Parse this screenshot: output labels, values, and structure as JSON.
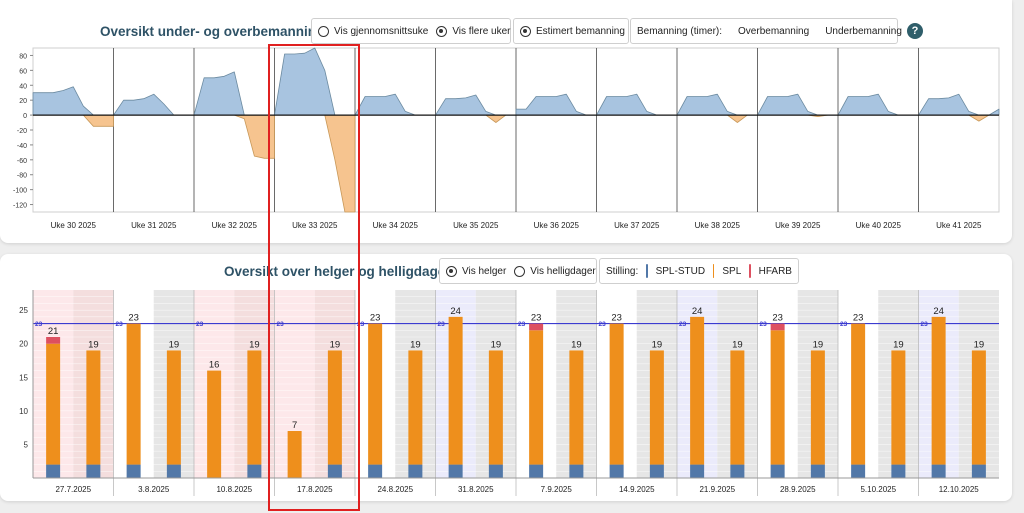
{
  "chart1": {
    "title": "Oversikt under- og overbemanning",
    "opt_avg": "Vis gjennomsnittsuke",
    "opt_multi": "Vis flere uker",
    "opt_est": "Estimert bemanning",
    "legend_label": "Bemanning (timer):",
    "legend_over": "Overbemanning",
    "legend_under": "Underbemanning",
    "help": "?",
    "colors": {
      "over": "#a8c4e0",
      "under": "#f6c48f",
      "over_stroke": "#6b8aa0",
      "under_stroke": "#c89858"
    }
  },
  "chart2": {
    "title": "Oversikt over helger og helligdager",
    "opt_helger": "Vis helger",
    "opt_hellig": "Vis helligdager",
    "legend_label": "Stilling:",
    "legend": [
      {
        "name": "SPL-STUD",
        "color": "#5278a8"
      },
      {
        "name": "SPL",
        "color": "#ee8f1c"
      },
      {
        "name": "HFARB",
        "color": "#dd5060"
      }
    ]
  },
  "chart_data": [
    {
      "type": "area",
      "title": "Oversikt under- og overbemanning",
      "ylim": [
        -130,
        90
      ],
      "yticks": [
        80,
        60,
        40,
        20,
        0,
        -20,
        -40,
        -60,
        -80,
        -100,
        -120
      ],
      "categories": [
        "Uke 30 2025",
        "Uke 31 2025",
        "Uke 32 2025",
        "Uke 33 2025",
        "Uke 34 2025",
        "Uke 35 2025",
        "Uke 36 2025",
        "Uke 37 2025",
        "Uke 38 2025",
        "Uke 39 2025",
        "Uke 40 2025",
        "Uke 41 2025"
      ],
      "series": [
        {
          "values": [
            [
              30,
              30,
              30,
              33,
              38,
              12,
              -15,
              -15,
              -15
            ],
            [
              0,
              20,
              20,
              22,
              28,
              15,
              0,
              0,
              0
            ],
            [
              0,
              50,
              50,
              52,
              58,
              -5,
              -55,
              -58,
              -58
            ],
            [
              0,
              82,
              82,
              83,
              90,
              60,
              -60,
              -130,
              -130
            ],
            [
              0,
              25,
              25,
              25,
              28,
              5,
              0,
              0,
              0
            ],
            [
              0,
              22,
              22,
              23,
              27,
              5,
              -10,
              0,
              0
            ],
            [
              8,
              8,
              25,
              25,
              25,
              28,
              5,
              0,
              0
            ],
            [
              0,
              25,
              25,
              25,
              28,
              5,
              0,
              0,
              0
            ],
            [
              0,
              25,
              25,
              25,
              28,
              5,
              -10,
              0,
              0
            ],
            [
              0,
              25,
              25,
              25,
              28,
              5,
              -2,
              0,
              0
            ],
            [
              0,
              25,
              25,
              25,
              28,
              5,
              0,
              0,
              0
            ],
            [
              0,
              22,
              22,
              23,
              28,
              5,
              -8,
              0,
              8
            ]
          ]
        }
      ]
    },
    {
      "type": "bar",
      "title": "Oversikt over helger og helligdager",
      "ylim": [
        0,
        28
      ],
      "yticks": [
        25,
        20,
        15,
        10,
        5
      ],
      "reference": 23,
      "reference_label": "23",
      "categories": [
        "27.7.2025",
        "3.8.2025",
        "10.8.2025",
        "17.8.2025",
        "24.8.2025",
        "31.8.2025",
        "7.9.2025",
        "14.9.2025",
        "21.9.2025",
        "28.9.2025",
        "5.10.2025",
        "12.10.2025"
      ],
      "weeks": [
        {
          "bg": "pink",
          "sat": {
            "stud": 2,
            "spl": 18,
            "hfarb": 1,
            "total": "21"
          },
          "sun": {
            "stud": 2,
            "spl": 17,
            "hfarb": 0,
            "total": "19"
          }
        },
        {
          "bg": "none",
          "sat": {
            "stud": 2,
            "spl": 21,
            "hfarb": 0,
            "total": "23"
          },
          "sun": {
            "stud": 2,
            "spl": 17,
            "hfarb": 0,
            "total": "19"
          }
        },
        {
          "bg": "pink",
          "sat": {
            "stud": 0,
            "spl": 16,
            "hfarb": 0,
            "total": "16"
          },
          "sun": {
            "stud": 2,
            "spl": 17,
            "hfarb": 0,
            "total": "19"
          }
        },
        {
          "bg": "pink",
          "sat": {
            "stud": 0,
            "spl": 7,
            "hfarb": 0,
            "total": "7"
          },
          "sun": {
            "stud": 2,
            "spl": 17,
            "hfarb": 0,
            "total": "19"
          }
        },
        {
          "bg": "none",
          "sat": {
            "stud": 2,
            "spl": 21,
            "hfarb": 0,
            "total": "23"
          },
          "sun": {
            "stud": 2,
            "spl": 17,
            "hfarb": 0,
            "total": "19"
          }
        },
        {
          "bg": "blue",
          "sat": {
            "stud": 2,
            "spl": 22,
            "hfarb": 0,
            "total": "24"
          },
          "sun": {
            "stud": 2,
            "spl": 17,
            "hfarb": 0,
            "total": "19"
          }
        },
        {
          "bg": "none",
          "sat": {
            "stud": 2,
            "spl": 20,
            "hfarb": 1,
            "total": "23"
          },
          "sun": {
            "stud": 2,
            "spl": 17,
            "hfarb": 0,
            "total": "19"
          }
        },
        {
          "bg": "none",
          "sat": {
            "stud": 2,
            "spl": 21,
            "hfarb": 0,
            "total": "23"
          },
          "sun": {
            "stud": 2,
            "spl": 17,
            "hfarb": 0,
            "total": "19"
          }
        },
        {
          "bg": "blue",
          "sat": {
            "stud": 2,
            "spl": 22,
            "hfarb": 0,
            "total": "24"
          },
          "sun": {
            "stud": 2,
            "spl": 17,
            "hfarb": 0,
            "total": "19"
          }
        },
        {
          "bg": "none",
          "sat": {
            "stud": 2,
            "spl": 20,
            "hfarb": 1,
            "total": "23"
          },
          "sun": {
            "stud": 2,
            "spl": 17,
            "hfarb": 0,
            "total": "19"
          }
        },
        {
          "bg": "none",
          "sat": {
            "stud": 2,
            "spl": 21,
            "hfarb": 0,
            "total": "23"
          },
          "sun": {
            "stud": 2,
            "spl": 17,
            "hfarb": 0,
            "total": "19"
          }
        },
        {
          "bg": "blue",
          "sat": {
            "stud": 2,
            "spl": 22,
            "hfarb": 0,
            "total": "24"
          },
          "sun": {
            "stud": 2,
            "spl": 17,
            "hfarb": 0,
            "total": "19"
          }
        }
      ]
    }
  ]
}
